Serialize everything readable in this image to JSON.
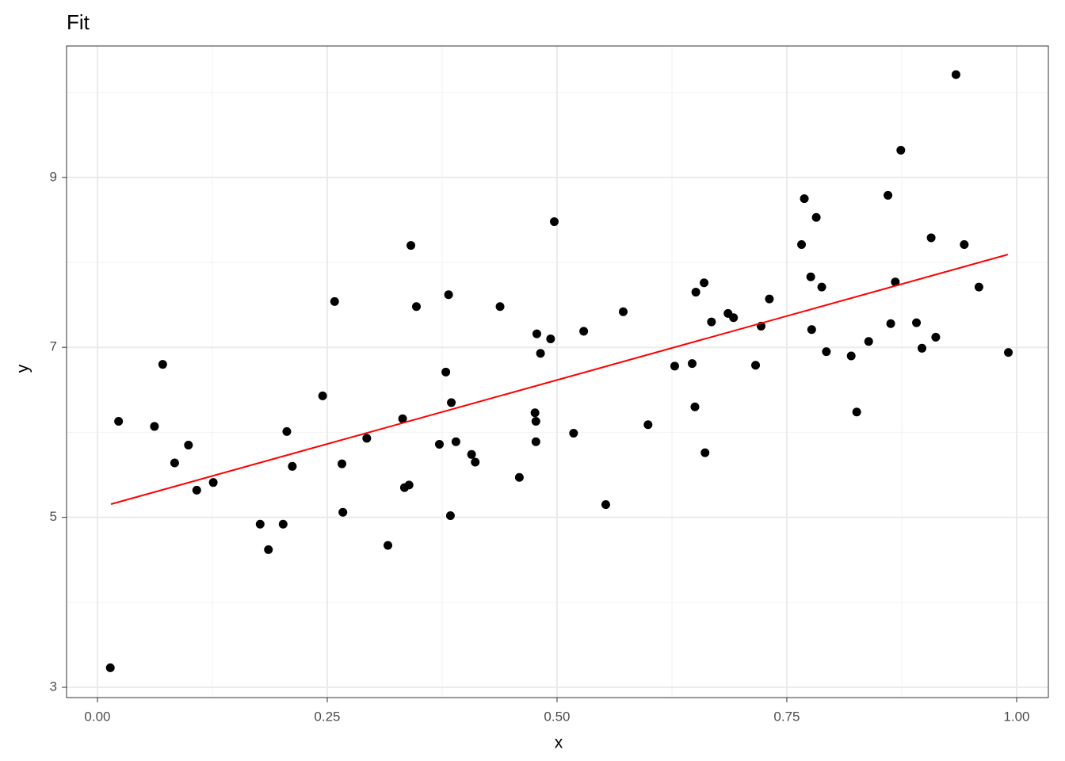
{
  "chart_data": {
    "type": "scatter",
    "title": "Fit",
    "xlabel": "x",
    "ylabel": "y",
    "x": [
      0.014,
      0.023,
      0.062,
      0.071,
      0.084,
      0.099,
      0.108,
      0.126,
      0.177,
      0.186,
      0.202,
      0.206,
      0.212,
      0.245,
      0.258,
      0.266,
      0.267,
      0.293,
      0.316,
      0.332,
      0.334,
      0.339,
      0.341,
      0.347,
      0.372,
      0.379,
      0.382,
      0.384,
      0.385,
      0.39,
      0.407,
      0.411,
      0.438,
      0.459,
      0.476,
      0.477,
      0.477,
      0.478,
      0.482,
      0.493,
      0.497,
      0.518,
      0.529,
      0.553,
      0.572,
      0.599,
      0.628,
      0.647,
      0.65,
      0.651,
      0.66,
      0.661,
      0.668,
      0.686,
      0.692,
      0.716,
      0.722,
      0.731,
      0.766,
      0.769,
      0.776,
      0.777,
      0.782,
      0.788,
      0.793,
      0.82,
      0.826,
      0.839,
      0.86,
      0.863,
      0.868,
      0.874,
      0.891,
      0.897,
      0.907,
      0.912,
      0.934,
      0.943,
      0.959,
      0.991
    ],
    "y": [
      3.23,
      6.13,
      6.07,
      6.8,
      5.64,
      5.85,
      5.32,
      5.41,
      4.92,
      4.62,
      4.92,
      6.01,
      5.6,
      6.43,
      7.54,
      5.63,
      5.06,
      5.93,
      4.67,
      6.16,
      5.35,
      5.38,
      8.2,
      7.48,
      5.86,
      6.71,
      7.62,
      5.02,
      6.35,
      5.89,
      5.74,
      5.65,
      7.48,
      5.47,
      6.23,
      6.13,
      5.89,
      7.16,
      6.93,
      7.1,
      8.48,
      5.99,
      7.19,
      5.15,
      7.42,
      6.09,
      6.78,
      6.81,
      6.3,
      7.65,
      7.76,
      5.76,
      7.3,
      7.4,
      7.35,
      6.79,
      7.25,
      7.57,
      8.21,
      8.75,
      7.83,
      7.21,
      8.53,
      7.71,
      6.95,
      6.9,
      6.24,
      7.07,
      8.79,
      7.28,
      7.77,
      9.32,
      7.29,
      6.99,
      8.29,
      7.12,
      10.21,
      8.21,
      7.71,
      6.94
    ],
    "color": "#000000",
    "line": {
      "x": [
        0.0147,
        0.9905
      ],
      "y": [
        5.155,
        8.093
      ],
      "color": "#ff0000"
    },
    "xlim": [
      -0.0336,
      1.0345
    ],
    "ylim": [
      2.879,
      10.547
    ],
    "xticks": [
      {
        "value": 0,
        "label": "0.00"
      },
      {
        "value": 0.25,
        "label": "0.25"
      },
      {
        "value": 0.5,
        "label": "0.50"
      },
      {
        "value": 0.75,
        "label": "0.75"
      },
      {
        "value": 1,
        "label": "1.00"
      }
    ],
    "yticks": [
      3,
      5,
      7,
      9
    ],
    "xminor": [
      0.125,
      0.375,
      0.625,
      0.875
    ],
    "yminor": [
      4,
      6,
      8,
      10
    ],
    "grid": true
  }
}
